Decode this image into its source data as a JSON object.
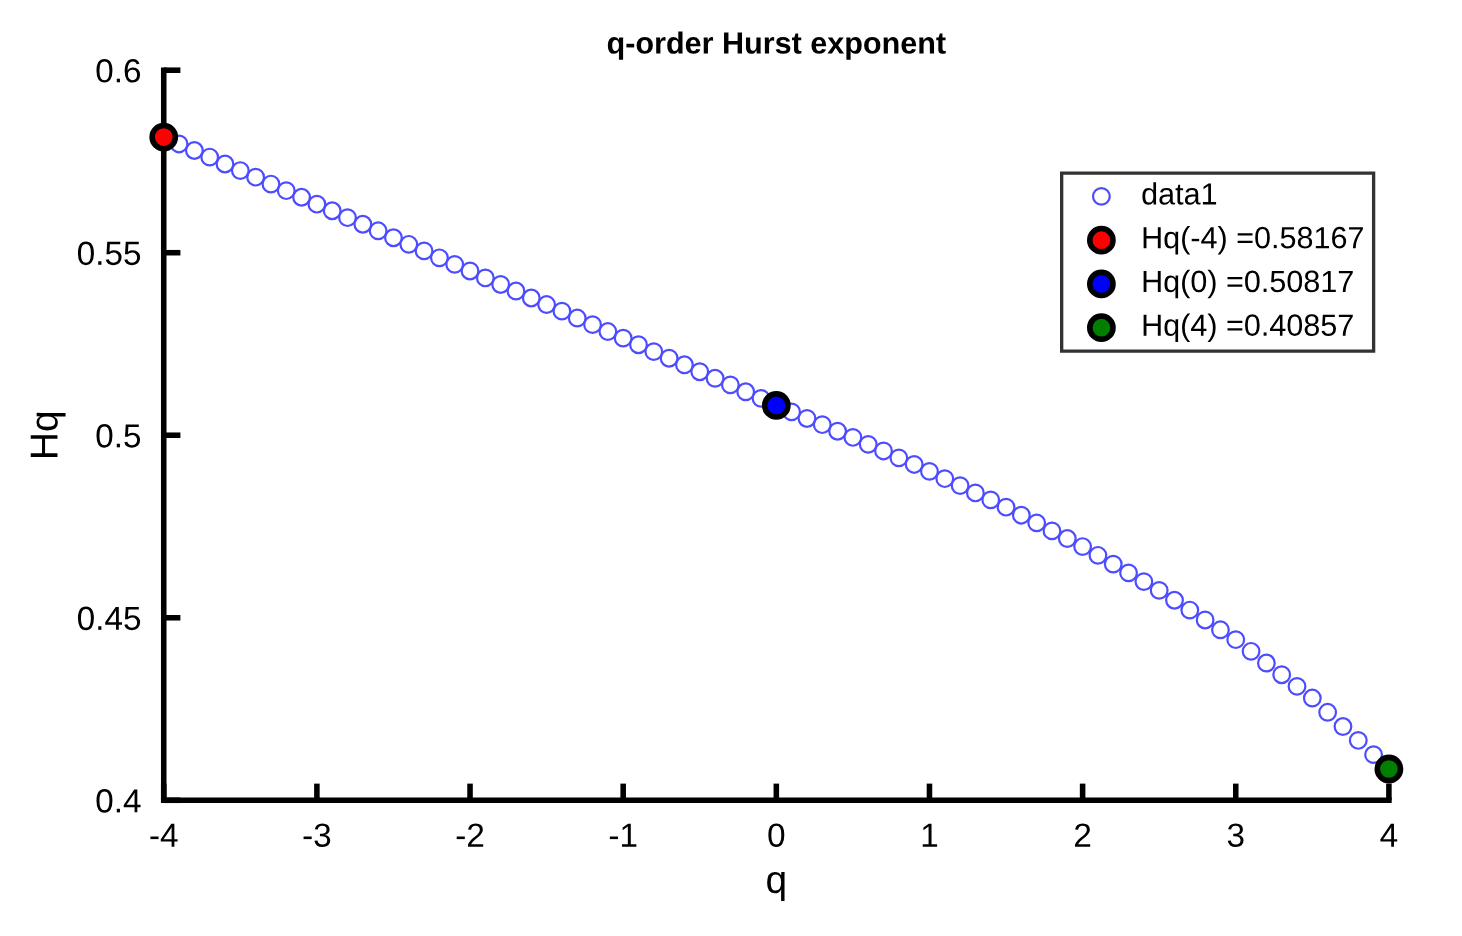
{
  "chart_data": {
    "type": "scatter",
    "title": "q-order Hurst exponent",
    "xlabel": "q",
    "ylabel": "Hq",
    "xlim": [
      -4,
      4
    ],
    "xticks": [
      -4,
      -3,
      -2,
      -1,
      0,
      1,
      2,
      3,
      4
    ],
    "ylim": [
      0.4,
      0.6
    ],
    "yticks": [
      0.4,
      0.45,
      0.5,
      0.55,
      0.6
    ],
    "grid": false,
    "legend": "top right",
    "marker": "circle",
    "series": [
      {
        "name": "data1",
        "color": "#4d4dff",
        "x": [
          -3.9,
          -3.8,
          -3.7,
          -3.6,
          -3.5,
          -3.4,
          -3.3,
          -3.2,
          -3.1,
          -3.0,
          -2.9,
          -2.8,
          -2.7,
          -2.6,
          -2.5,
          -2.4,
          -2.3,
          -2.2,
          -2.1,
          -2.0,
          -1.9,
          -1.8,
          -1.7,
          -1.6,
          -1.5,
          -1.4,
          -1.3,
          -1.2,
          -1.1,
          -1.0,
          -0.9,
          -0.8,
          -0.7,
          -0.6,
          -0.5,
          -0.4,
          -0.3,
          -0.2,
          -0.1,
          0.1,
          0.2,
          0.3,
          0.4,
          0.5,
          0.6,
          0.7,
          0.8,
          0.9,
          1.0,
          1.1,
          1.2,
          1.3,
          1.4,
          1.5,
          1.6,
          1.7,
          1.8,
          1.9,
          2.0,
          2.1,
          2.2,
          2.3,
          2.4,
          2.5,
          2.6,
          2.7,
          2.8,
          2.9,
          3.0,
          3.1,
          3.2,
          3.3,
          3.4,
          3.5,
          3.6,
          3.7,
          3.8,
          3.9
        ],
        "values": [
          0.5798,
          0.578,
          0.5762,
          0.5743,
          0.5725,
          0.5707,
          0.5688,
          0.567,
          0.5652,
          0.5633,
          0.5615,
          0.5596,
          0.5578,
          0.556,
          0.5541,
          0.5523,
          0.5505,
          0.5486,
          0.5468,
          0.545,
          0.5431,
          0.5413,
          0.5395,
          0.5376,
          0.5358,
          0.534,
          0.5321,
          0.5303,
          0.5284,
          0.5266,
          0.5248,
          0.5229,
          0.5211,
          0.5193,
          0.5174,
          0.5156,
          0.5138,
          0.5119,
          0.5101,
          0.5064,
          0.5046,
          0.5029,
          0.5011,
          0.4994,
          0.4975,
          0.4957,
          0.4938,
          0.492,
          0.4901,
          0.4881,
          0.4862,
          0.4842,
          0.4823,
          0.4803,
          0.4781,
          0.476,
          0.4738,
          0.4717,
          0.4695,
          0.4671,
          0.4647,
          0.4623,
          0.4599,
          0.4575,
          0.4548,
          0.4521,
          0.4494,
          0.4467,
          0.444,
          0.4408,
          0.4376,
          0.4344,
          0.4312,
          0.428,
          0.4241,
          0.4202,
          0.4164,
          0.4125
        ]
      },
      {
        "name": "Hq(-4) =0.58167",
        "color": "#ff0000",
        "x": [
          -4
        ],
        "values": [
          0.58167
        ]
      },
      {
        "name": "Hq(0) =0.50817",
        "color": "#0000ff",
        "x": [
          0
        ],
        "values": [
          0.50817
        ]
      },
      {
        "name": "Hq(4) =0.40857",
        "color": "#007f00",
        "x": [
          4
        ],
        "values": [
          0.40857
        ]
      }
    ]
  }
}
